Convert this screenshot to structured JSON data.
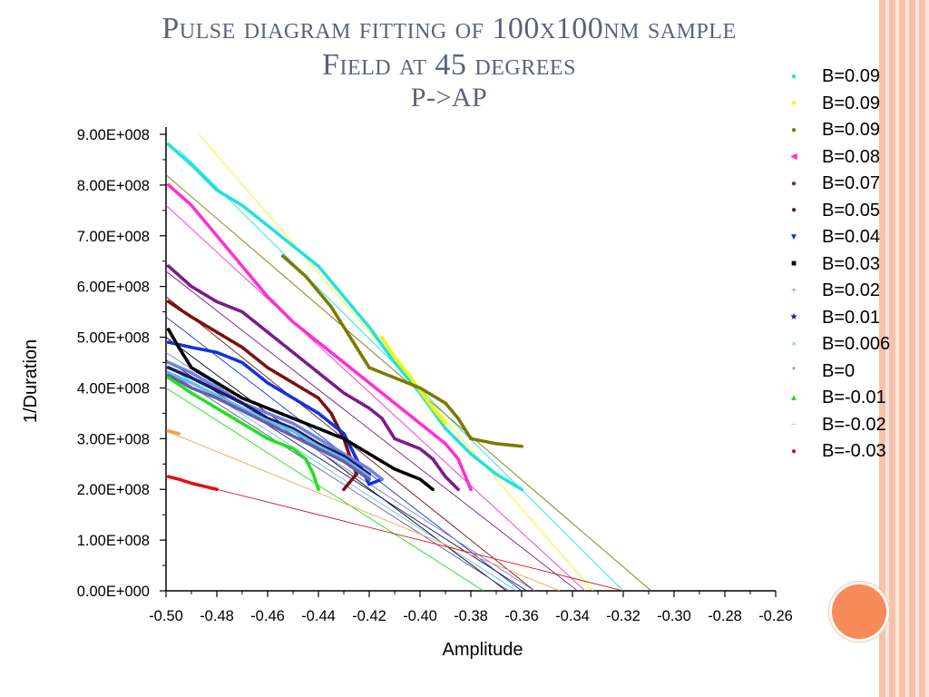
{
  "slide": {
    "title_line1": "Pulse diagram fitting of 100x100nm sample",
    "title_line2": "Field at 45 degrees",
    "title_line3": "P->AP"
  },
  "chart_data": {
    "type": "scatter",
    "xlabel": "Amplitude",
    "ylabel": "1/Duration",
    "xlim": [
      -0.5,
      -0.26
    ],
    "ylim": [
      0,
      900000000
    ],
    "x_ticks": [
      "-0.50",
      "-0.48",
      "-0.46",
      "-0.44",
      "-0.42",
      "-0.40",
      "-0.38",
      "-0.36",
      "-0.34",
      "-0.32",
      "-0.30",
      "-0.28",
      "-0.26"
    ],
    "y_ticks": [
      "0.00E+000",
      "1.00E+008",
      "2.00E+008",
      "3.00E+008",
      "4.00E+008",
      "5.00E+008",
      "6.00E+008",
      "7.00E+008",
      "8.00E+008",
      "9.00E+008"
    ],
    "grid": false,
    "legend_position": "right",
    "series": [
      {
        "name": "B=0.09",
        "color": "#22e0e0",
        "marker": "dot",
        "points": [
          [
            -0.499,
            880000000
          ],
          [
            -0.49,
            840000000
          ],
          [
            -0.48,
            790000000
          ],
          [
            -0.47,
            760000000
          ],
          [
            -0.46,
            720000000
          ],
          [
            -0.45,
            680000000
          ],
          [
            -0.44,
            640000000
          ],
          [
            -0.43,
            580000000
          ],
          [
            -0.42,
            520000000
          ],
          [
            -0.41,
            450000000
          ],
          [
            -0.4,
            390000000
          ],
          [
            -0.39,
            320000000
          ],
          [
            -0.38,
            270000000
          ],
          [
            -0.37,
            230000000
          ],
          [
            -0.36,
            200000000
          ]
        ],
        "fit": [
          [
            -0.495,
            870000000
          ],
          [
            -0.32,
            0
          ]
        ]
      },
      {
        "name": "B=0.09",
        "color": "#f5f500",
        "marker": "dot",
        "points": [
          [
            -0.415,
            500000000
          ],
          [
            -0.41,
            460000000
          ],
          [
            -0.405,
            430000000
          ],
          [
            -0.4,
            395000000
          ],
          [
            -0.395,
            360000000
          ],
          [
            -0.39,
            330000000
          ]
        ],
        "fit": [
          [
            -0.487,
            900000000
          ],
          [
            -0.332,
            0
          ]
        ]
      },
      {
        "name": "B=0.09",
        "color": "#7a7a00",
        "marker": "dot",
        "points": [
          [
            -0.454,
            660000000
          ],
          [
            -0.445,
            620000000
          ],
          [
            -0.435,
            560000000
          ],
          [
            -0.43,
            520000000
          ],
          [
            -0.425,
            480000000
          ],
          [
            -0.42,
            440000000
          ],
          [
            -0.41,
            420000000
          ],
          [
            -0.4,
            400000000
          ],
          [
            -0.39,
            370000000
          ],
          [
            -0.385,
            340000000
          ],
          [
            -0.38,
            300000000
          ],
          [
            -0.37,
            290000000
          ],
          [
            -0.36,
            285000000
          ]
        ],
        "fit": [
          [
            -0.5,
            820000000
          ],
          [
            -0.309,
            0
          ]
        ]
      },
      {
        "name": "B=0.08",
        "color": "#ff2ed2",
        "marker": "triangle-left",
        "points": [
          [
            -0.499,
            800000000
          ],
          [
            -0.49,
            760000000
          ],
          [
            -0.48,
            700000000
          ],
          [
            -0.47,
            640000000
          ],
          [
            -0.46,
            580000000
          ],
          [
            -0.45,
            530000000
          ],
          [
            -0.44,
            490000000
          ],
          [
            -0.43,
            450000000
          ],
          [
            -0.42,
            410000000
          ],
          [
            -0.41,
            370000000
          ],
          [
            -0.4,
            330000000
          ],
          [
            -0.39,
            290000000
          ],
          [
            -0.385,
            260000000
          ],
          [
            -0.38,
            200000000
          ]
        ],
        "fit": [
          [
            -0.5,
            760000000
          ],
          [
            -0.335,
            0
          ]
        ]
      },
      {
        "name": "B=0.07",
        "color": "#7a1a8a",
        "marker": "dot",
        "points": [
          [
            -0.499,
            640000000
          ],
          [
            -0.49,
            600000000
          ],
          [
            -0.48,
            570000000
          ],
          [
            -0.47,
            550000000
          ],
          [
            -0.46,
            510000000
          ],
          [
            -0.45,
            470000000
          ],
          [
            -0.44,
            430000000
          ],
          [
            -0.43,
            390000000
          ],
          [
            -0.42,
            360000000
          ],
          [
            -0.415,
            340000000
          ],
          [
            -0.41,
            300000000
          ],
          [
            -0.4,
            280000000
          ],
          [
            -0.395,
            260000000
          ],
          [
            -0.39,
            225000000
          ],
          [
            -0.385,
            200000000
          ]
        ],
        "fit": [
          [
            -0.5,
            630000000
          ],
          [
            -0.338,
            0
          ]
        ]
      },
      {
        "name": "B=0.05",
        "color": "#7a1010",
        "marker": "dot",
        "points": [
          [
            -0.499,
            570000000
          ],
          [
            -0.49,
            540000000
          ],
          [
            -0.48,
            510000000
          ],
          [
            -0.47,
            480000000
          ],
          [
            -0.46,
            440000000
          ],
          [
            -0.45,
            410000000
          ],
          [
            -0.44,
            380000000
          ],
          [
            -0.435,
            350000000
          ],
          [
            -0.43,
            300000000
          ],
          [
            -0.428,
            270000000
          ],
          [
            -0.425,
            230000000
          ],
          [
            -0.43,
            200000000
          ]
        ],
        "fit": [
          [
            -0.5,
            580000000
          ],
          [
            -0.355,
            0
          ]
        ]
      },
      {
        "name": "B=0.04",
        "color": "#1030e0",
        "marker": "triangle-down",
        "points": [
          [
            -0.499,
            490000000
          ],
          [
            -0.49,
            480000000
          ],
          [
            -0.48,
            470000000
          ],
          [
            -0.47,
            450000000
          ],
          [
            -0.46,
            410000000
          ],
          [
            -0.45,
            380000000
          ],
          [
            -0.44,
            350000000
          ],
          [
            -0.43,
            310000000
          ],
          [
            -0.425,
            260000000
          ],
          [
            -0.42,
            210000000
          ],
          [
            -0.415,
            220000000
          ]
        ],
        "fit": [
          [
            -0.5,
            540000000
          ],
          [
            -0.36,
            0
          ]
        ]
      },
      {
        "name": "B=0.03",
        "color": "#000000",
        "marker": "square",
        "points": [
          [
            -0.499,
            515000000
          ],
          [
            -0.495,
            480000000
          ],
          [
            -0.49,
            440000000
          ],
          [
            -0.48,
            410000000
          ],
          [
            -0.47,
            380000000
          ],
          [
            -0.46,
            360000000
          ],
          [
            -0.45,
            340000000
          ],
          [
            -0.44,
            320000000
          ],
          [
            -0.43,
            300000000
          ],
          [
            -0.42,
            270000000
          ],
          [
            -0.41,
            240000000
          ],
          [
            -0.4,
            220000000
          ],
          [
            -0.395,
            200000000
          ]
        ],
        "fit": [
          [
            -0.5,
            500000000
          ],
          [
            -0.366,
            0
          ]
        ]
      },
      {
        "name": "B=0.02",
        "color": "#7080e0",
        "marker": "plus",
        "points": [
          [
            -0.499,
            450000000
          ],
          [
            -0.49,
            430000000
          ],
          [
            -0.48,
            400000000
          ],
          [
            -0.47,
            370000000
          ],
          [
            -0.46,
            350000000
          ],
          [
            -0.45,
            330000000
          ],
          [
            -0.44,
            300000000
          ],
          [
            -0.43,
            270000000
          ],
          [
            -0.42,
            240000000
          ],
          [
            -0.415,
            220000000
          ]
        ],
        "fit": [
          [
            -0.5,
            470000000
          ],
          [
            -0.355,
            0
          ]
        ]
      },
      {
        "name": "B=0.01",
        "color": "#1a1a6a",
        "marker": "star",
        "points": [
          [
            -0.499,
            440000000
          ],
          [
            -0.49,
            420000000
          ],
          [
            -0.48,
            395000000
          ],
          [
            -0.47,
            370000000
          ],
          [
            -0.46,
            340000000
          ],
          [
            -0.45,
            320000000
          ],
          [
            -0.44,
            290000000
          ],
          [
            -0.43,
            265000000
          ],
          [
            -0.42,
            230000000
          ]
        ],
        "fit": [
          [
            -0.5,
            455000000
          ],
          [
            -0.358,
            0
          ]
        ]
      },
      {
        "name": "B=0.006",
        "color": "#60c0e0",
        "marker": "x",
        "points": [
          [
            -0.499,
            430000000
          ],
          [
            -0.49,
            410000000
          ],
          [
            -0.48,
            385000000
          ],
          [
            -0.47,
            360000000
          ],
          [
            -0.46,
            335000000
          ],
          [
            -0.45,
            315000000
          ],
          [
            -0.44,
            285000000
          ],
          [
            -0.43,
            260000000
          ],
          [
            -0.42,
            225000000
          ]
        ],
        "fit": [
          [
            -0.5,
            445000000
          ],
          [
            -0.362,
            0
          ]
        ]
      },
      {
        "name": "B=0",
        "color": "#6a5ab0",
        "marker": "asterisk",
        "points": [
          [
            -0.499,
            425000000
          ],
          [
            -0.49,
            400000000
          ],
          [
            -0.48,
            380000000
          ],
          [
            -0.47,
            355000000
          ],
          [
            -0.46,
            330000000
          ],
          [
            -0.45,
            305000000
          ],
          [
            -0.44,
            280000000
          ],
          [
            -0.43,
            255000000
          ],
          [
            -0.42,
            220000000
          ]
        ],
        "fit": [
          [
            -0.5,
            435000000
          ],
          [
            -0.365,
            0
          ]
        ]
      },
      {
        "name": "B=-0.01",
        "color": "#22e022",
        "marker": "triangle-up",
        "points": [
          [
            -0.499,
            420000000
          ],
          [
            -0.49,
            390000000
          ],
          [
            -0.48,
            360000000
          ],
          [
            -0.47,
            330000000
          ],
          [
            -0.46,
            300000000
          ],
          [
            -0.45,
            280000000
          ],
          [
            -0.445,
            260000000
          ],
          [
            -0.442,
            230000000
          ],
          [
            -0.44,
            200000000
          ]
        ],
        "fit": [
          [
            -0.5,
            400000000
          ],
          [
            -0.375,
            0
          ]
        ]
      },
      {
        "name": "B=-0.02",
        "color": "#f0a050",
        "marker": "dash",
        "points": [
          [
            -0.499,
            315000000
          ],
          [
            -0.495,
            310000000
          ]
        ],
        "fit": [
          [
            -0.5,
            315000000
          ],
          [
            -0.345,
            0
          ]
        ]
      },
      {
        "name": "B=-0.03",
        "color": "#e01010",
        "marker": "dot",
        "points": [
          [
            -0.499,
            225000000
          ],
          [
            -0.495,
            220000000
          ],
          [
            -0.49,
            212000000
          ],
          [
            -0.485,
            206000000
          ],
          [
            -0.48,
            200000000
          ]
        ],
        "fit": [
          [
            -0.5,
            225000000
          ],
          [
            -0.32,
            0
          ]
        ]
      }
    ]
  }
}
